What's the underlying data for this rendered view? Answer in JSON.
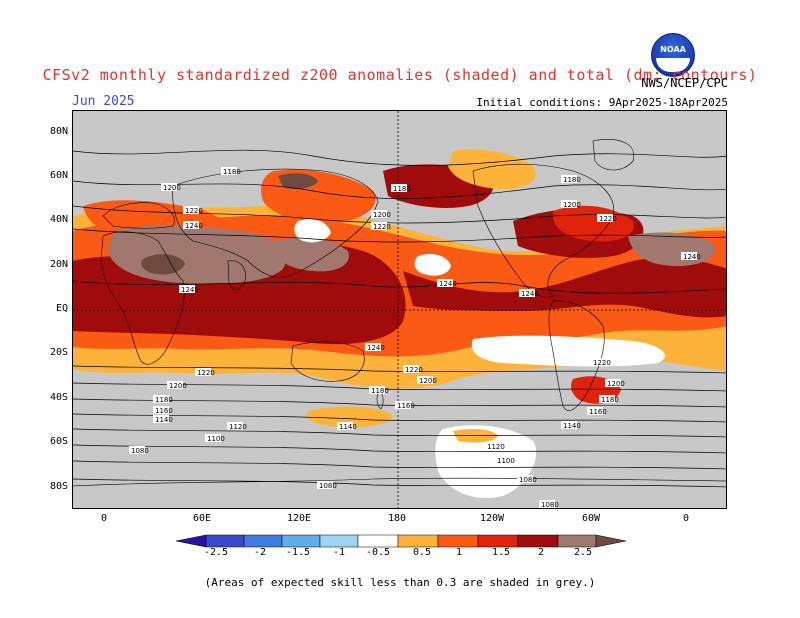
{
  "header": {
    "title": "CFSv2 monthly standardized z200 anomalies (shaded) and total (dm; contours)",
    "month": "Jun 2025",
    "agency": "NWS/NCEP/CPC",
    "initial_conditions": "Initial conditions: 9Apr2025-18Apr2025",
    "logo_text": "NOAA"
  },
  "axes": {
    "lat_labels": [
      "80N",
      "60N",
      "40N",
      "20N",
      "EQ",
      "20S",
      "40S",
      "60S",
      "80S"
    ],
    "lon_labels": [
      "0",
      "60E",
      "120E",
      "180",
      "120W",
      "60W",
      "0"
    ]
  },
  "contour_labels": [
    "1180",
    "1200",
    "1220",
    "1240",
    "1160",
    "1140",
    "1120",
    "1100",
    "1080"
  ],
  "colorbar": {
    "labels": [
      "-2.5",
      "-2",
      "-1.5",
      "-1",
      "-0.5",
      "0.5",
      "1",
      "1.5",
      "2",
      "2.5"
    ],
    "colors": [
      "#2a12a0",
      "#3a48cc",
      "#3f7ee0",
      "#5eaee8",
      "#9ed4f2",
      "#ffffff",
      "#fdb33a",
      "#fa5a14",
      "#e0240c",
      "#a00c0c",
      "#a07870",
      "#6e4a40"
    ]
  },
  "footnote": "(Areas of expected skill less than 0.3 are shaded in grey.)",
  "shading": {
    "grey": "#c8c8c8",
    "orange": "#fdb33a",
    "red_orange": "#fa5a14",
    "red": "#e0240c",
    "dark_red": "#a00c0c",
    "brown": "#a07870",
    "dark_brown": "#6e4a40",
    "white": "#ffffff"
  }
}
